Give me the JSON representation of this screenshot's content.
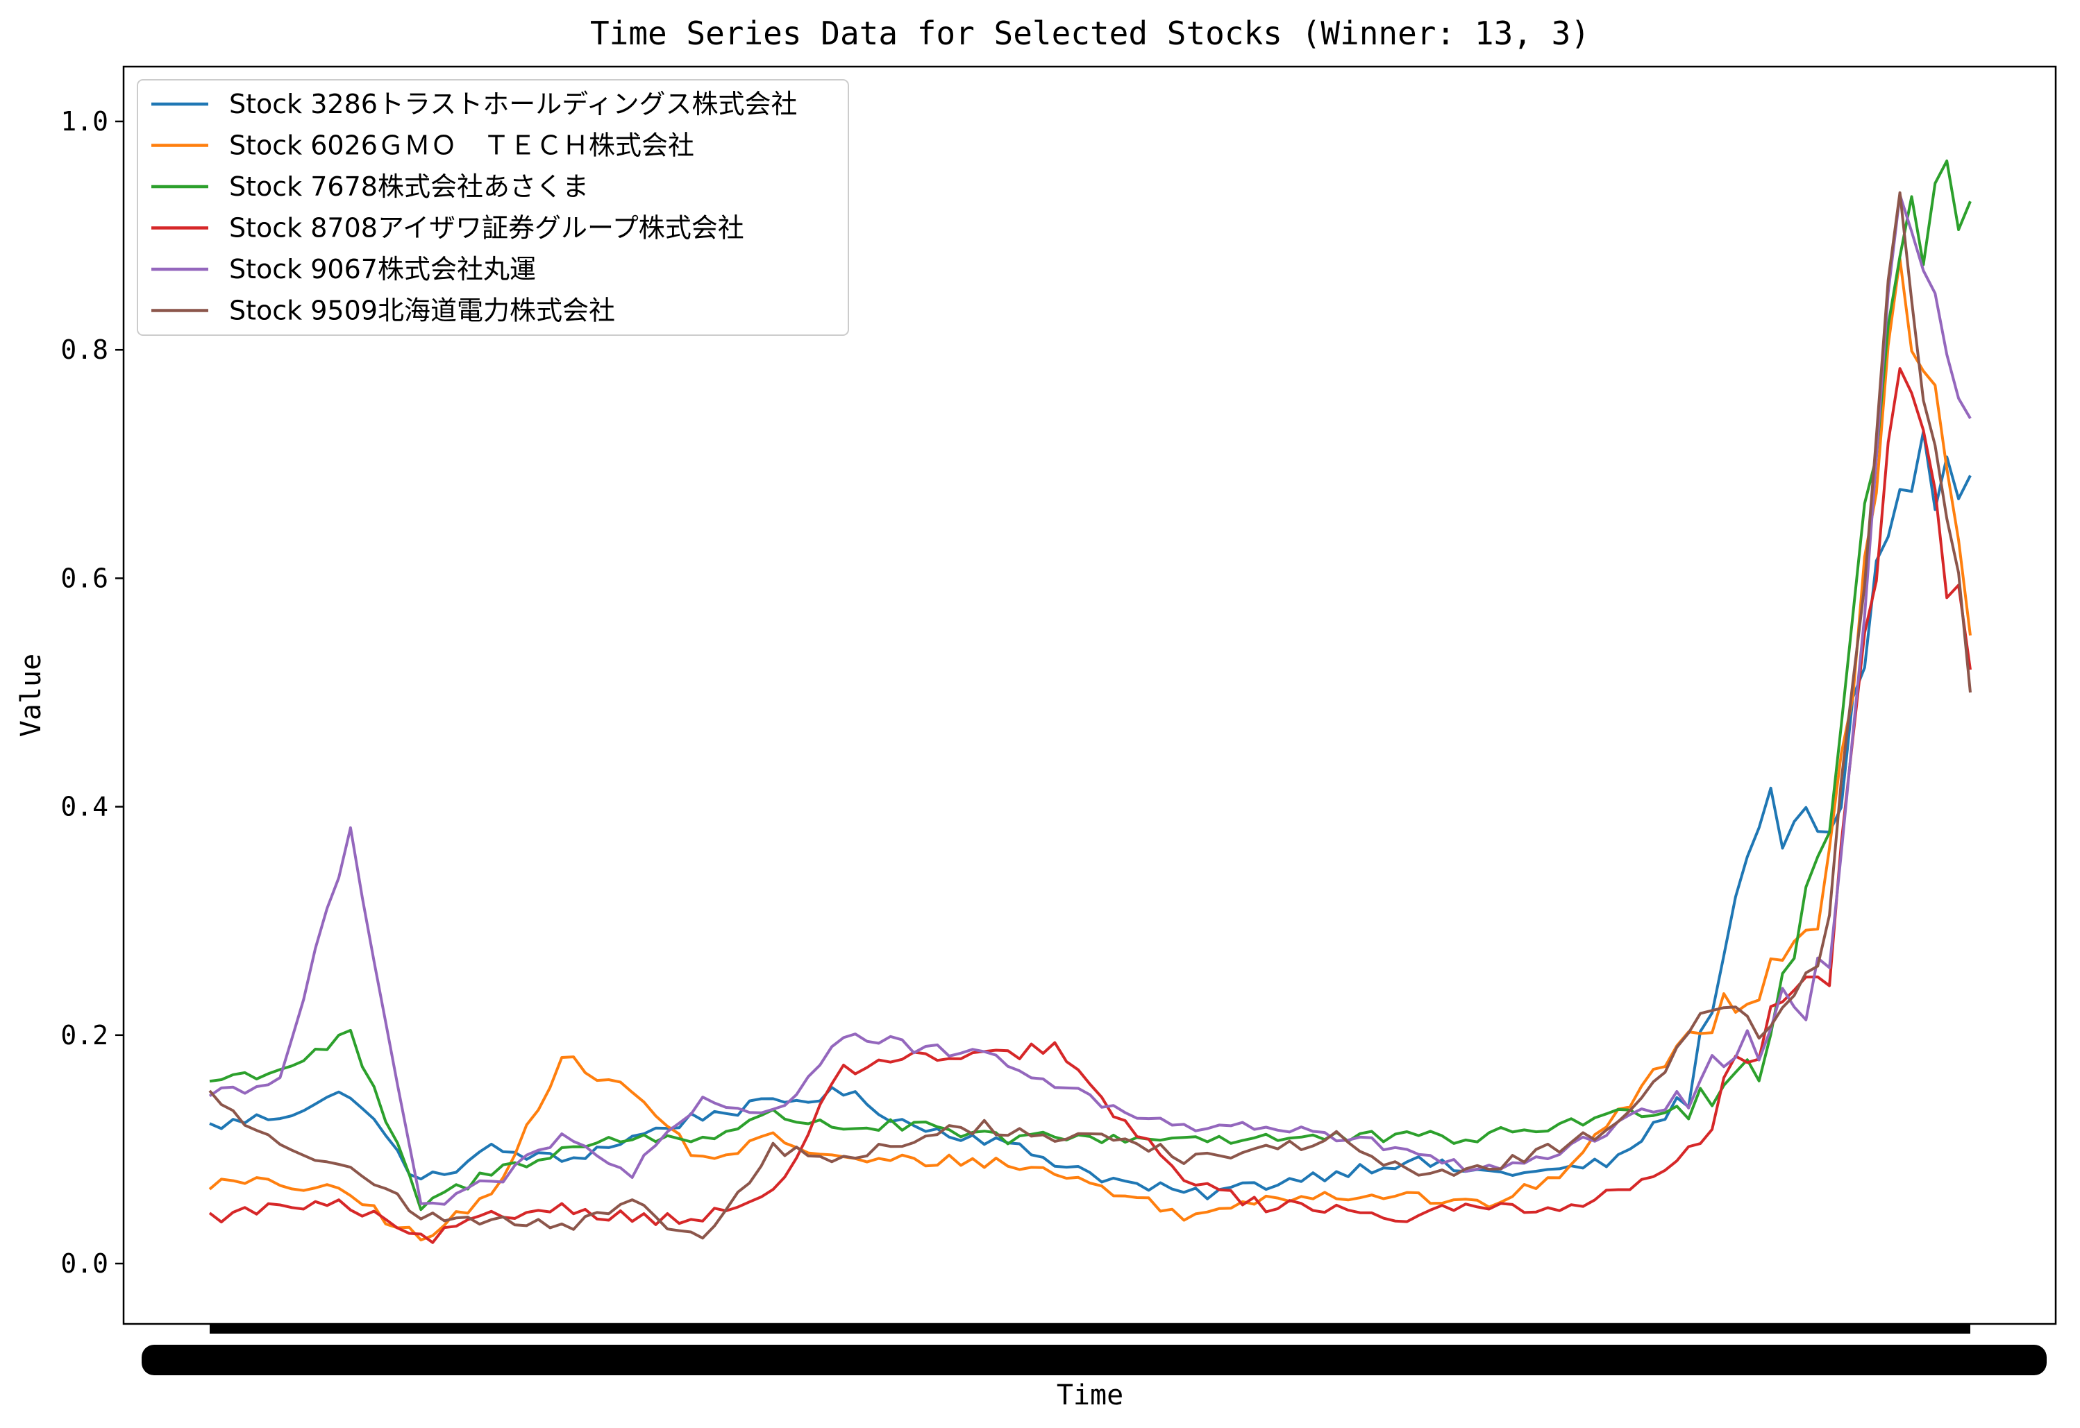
{
  "chart_data": {
    "type": "line",
    "title": "Time Series Data for Selected Stocks (Winner: 13, 3)",
    "xlabel": "Time",
    "ylabel": "Value",
    "ylim": [
      -0.05,
      1.05
    ],
    "yticks": [
      "0.0",
      "0.2",
      "0.4",
      "0.6",
      "0.8",
      "1.0"
    ],
    "grid": false,
    "legend_position": "upper-left",
    "x_tick_labels_note": "x-axis tick labels are densely overlapping and illegible",
    "x_index": [
      0,
      4,
      8,
      12,
      16,
      20,
      24,
      28,
      32,
      36,
      40,
      44,
      48,
      52,
      56,
      60,
      64,
      68,
      72,
      76,
      80,
      84,
      88,
      92,
      96,
      100
    ],
    "series": [
      {
        "name": "Stock 3286トラストホールディングス株式会社",
        "color": "#1f77b4",
        "values": [
          0.12,
          0.13,
          0.15,
          0.07,
          0.1,
          0.09,
          0.11,
          0.13,
          0.14,
          0.15,
          0.12,
          0.11,
          0.09,
          0.07,
          0.06,
          0.07,
          0.08,
          0.09,
          0.08,
          0.08,
          0.09,
          0.15,
          0.4,
          0.36,
          0.7,
          0.69
        ]
      },
      {
        "name": "Stock 6026ＧＭＯ　ＴＥＣＨ株式会社",
        "color": "#ff7f0e",
        "values": [
          0.07,
          0.07,
          0.06,
          0.02,
          0.06,
          0.18,
          0.15,
          0.09,
          0.11,
          0.09,
          0.09,
          0.09,
          0.08,
          0.06,
          0.04,
          0.06,
          0.06,
          0.06,
          0.05,
          0.07,
          0.13,
          0.2,
          0.25,
          0.33,
          0.9,
          0.55
        ]
      },
      {
        "name": "Stock 7678株式会社あさくま",
        "color": "#2ca02c",
        "values": [
          0.16,
          0.17,
          0.2,
          0.05,
          0.08,
          0.1,
          0.11,
          0.11,
          0.13,
          0.12,
          0.12,
          0.11,
          0.11,
          0.11,
          0.11,
          0.11,
          0.11,
          0.11,
          0.11,
          0.12,
          0.13,
          0.14,
          0.18,
          0.4,
          0.9,
          0.93
        ]
      },
      {
        "name": "Stock 8708アイザワ証券グループ株式会社",
        "color": "#d62728",
        "values": [
          0.04,
          0.05,
          0.05,
          0.02,
          0.04,
          0.05,
          0.04,
          0.04,
          0.06,
          0.17,
          0.18,
          0.18,
          0.19,
          0.12,
          0.07,
          0.05,
          0.05,
          0.04,
          0.05,
          0.05,
          0.06,
          0.1,
          0.2,
          0.25,
          0.8,
          0.52
        ]
      },
      {
        "name": "Stock 9067株式会社丸運",
        "color": "#9467bd",
        "values": [
          0.15,
          0.16,
          0.38,
          0.05,
          0.07,
          0.11,
          0.08,
          0.14,
          0.13,
          0.2,
          0.19,
          0.18,
          0.16,
          0.13,
          0.12,
          0.12,
          0.11,
          0.1,
          0.08,
          0.09,
          0.12,
          0.15,
          0.2,
          0.25,
          0.95,
          0.74
        ]
      },
      {
        "name": "Stock 9509北海道電力株式会社",
        "color": "#8c564b",
        "values": [
          0.15,
          0.1,
          0.09,
          0.04,
          0.04,
          0.03,
          0.05,
          0.02,
          0.1,
          0.09,
          0.11,
          0.12,
          0.11,
          0.11,
          0.09,
          0.1,
          0.11,
          0.08,
          0.08,
          0.1,
          0.12,
          0.2,
          0.22,
          0.28,
          0.95,
          0.5
        ]
      }
    ]
  }
}
